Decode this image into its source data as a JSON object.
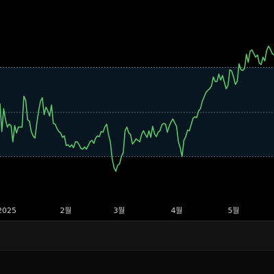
{
  "chart_data": {
    "type": "line",
    "x_labels": [
      "2025",
      "2월",
      "3월",
      "4월",
      "5월"
    ],
    "series": [
      {
        "color": "#5fc86a",
        "values": [
          92,
          54,
          85,
          70,
          60,
          64,
          62,
          40,
          62,
          52,
          60,
          60,
          60,
          102,
          96,
          70,
          68,
          54,
          48,
          45,
          65,
          82,
          95,
          100,
          77,
          87,
          82,
          75,
          90,
          65,
          64,
          58,
          54,
          52,
          46,
          48,
          35,
          36,
          33,
          36,
          32,
          40,
          40,
          36,
          31,
          30,
          33,
          30,
          35,
          40,
          42,
          38,
          45,
          48,
          47,
          54,
          53,
          60,
          64,
          50,
          40,
          17,
          5,
          0,
          8,
          10,
          20,
          25,
          55,
          60,
          52,
          50,
          37,
          40,
          44,
          42,
          40,
          50,
          55,
          50,
          46,
          55,
          46,
          61,
          51,
          47,
          53,
          55,
          63,
          65,
          64,
          53,
          61,
          67,
          71,
          66,
          61,
          40,
          32,
          20,
          42,
          47,
          56,
          55,
          64,
          72,
          74,
          73,
          82,
          85,
          95,
          101,
          107,
          110,
          112,
          116,
          128,
          122,
          122,
          132,
          124,
          130,
          121,
          112,
          117,
          138,
          136,
          128,
          118,
          122,
          146,
          138,
          137,
          140,
          159,
          148,
          163,
          165,
          160,
          155,
          158,
          147,
          145,
          155,
          150,
          164,
          170,
          166,
          160,
          158
        ],
        "y_range": [
          0,
          175
        ]
      }
    ],
    "band": {
      "upper": 141,
      "middle": 80,
      "lower": 20
    },
    "grid": false
  },
  "colors": {
    "background": "#000000",
    "band_fill": "#071620",
    "band_line": "#5a6a78",
    "line": "#5fc86a",
    "tick_text": "#cfcfcf",
    "bottom_bar": "#121212"
  }
}
